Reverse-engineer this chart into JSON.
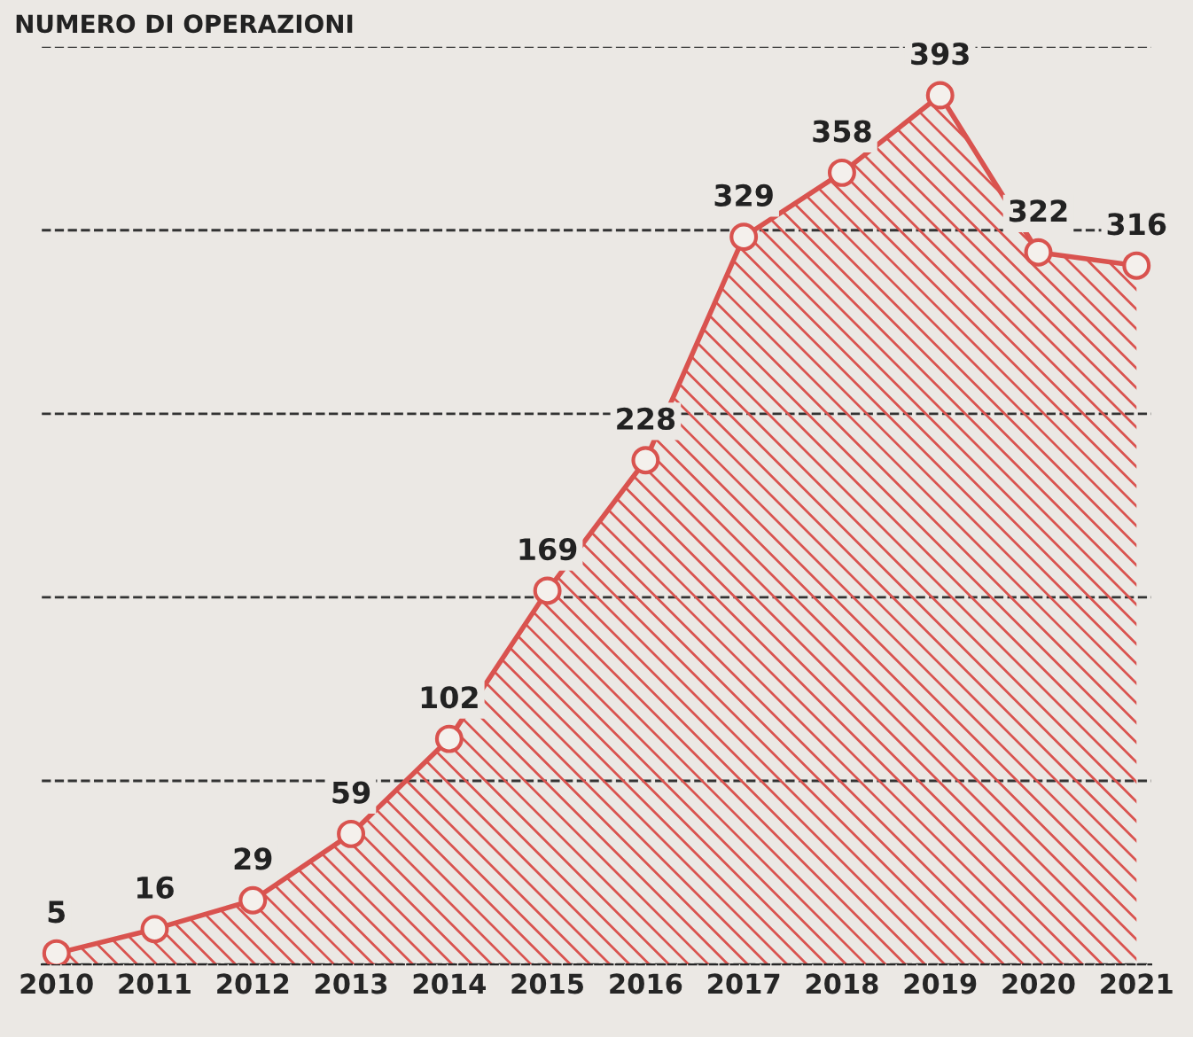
{
  "chart_data": {
    "type": "area",
    "title": "NUMERO DI OPERAZIONI",
    "categories": [
      "2010",
      "2011",
      "2012",
      "2013",
      "2014",
      "2015",
      "2016",
      "2017",
      "2018",
      "2019",
      "2020",
      "2021"
    ],
    "series": [
      {
        "color": "#d9534f",
        "values": [
          5,
          16,
          29,
          59,
          102,
          169,
          228,
          329,
          358,
          393,
          322,
          316
        ]
      }
    ],
    "ylim": [
      0,
      415
    ],
    "yticks": [
      {
        "value": 0,
        "label": null
      },
      {
        "value": 83,
        "label": null
      },
      {
        "value": 166,
        "label": null
      },
      {
        "value": 249,
        "label": null
      },
      {
        "value": 332,
        "label": null
      },
      {
        "value": 415,
        "label": null
      }
    ],
    "grid": "y",
    "marker": "circle",
    "line_style": "solid",
    "data_labels": true,
    "tick_labels": "x"
  }
}
